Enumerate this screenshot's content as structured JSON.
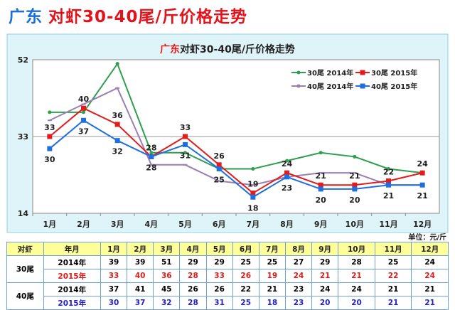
{
  "page_title": {
    "region": "广东",
    "rest": "对虾30-40尾/斤价格走势"
  },
  "colors": {
    "30尾 2014年": "#2e9e4f",
    "30尾 2015年": "#e31b1b",
    "40尾 2014年": "#9b7fb3",
    "40尾 2015年": "#1f6fe0",
    "background": "#dff4f8"
  },
  "unit": "单位：元/斤",
  "chart_data": {
    "type": "line",
    "title": {
      "region": "广东",
      "rest": "对虾30-40尾/斤价格走势"
    },
    "categories": [
      "1月",
      "2月",
      "3月",
      "4月",
      "5月",
      "6月",
      "7月",
      "8月",
      "9月",
      "10月",
      "11月",
      "12月"
    ],
    "ylim": [
      14,
      52
    ],
    "yticks": [
      14,
      33,
      52
    ],
    "grid": "horizontal at 33",
    "legend": "top-right",
    "series": [
      {
        "name": "30尾 2014年",
        "values": [
          39,
          39,
          51,
          29,
          29,
          25,
          25,
          27,
          29,
          28,
          25,
          24
        ],
        "labels": false
      },
      {
        "name": "30尾 2015年",
        "values": [
          33,
          40,
          36,
          28,
          33,
          26,
          19,
          24,
          21,
          21,
          22,
          24
        ],
        "labels": "above"
      },
      {
        "name": "40尾 2014年",
        "values": [
          37,
          41,
          45,
          26,
          26,
          22,
          21,
          23,
          24,
          24,
          21,
          21
        ],
        "labels": false
      },
      {
        "name": "40尾 2015年",
        "values": [
          30,
          37,
          32,
          28,
          31,
          25,
          18,
          23,
          20,
          20,
          21,
          21
        ],
        "labels": "below"
      }
    ]
  },
  "table": {
    "header": [
      "对虾",
      "年月",
      "1月",
      "2月",
      "3月",
      "4月",
      "5月",
      "6月",
      "7月",
      "8月",
      "9月",
      "10月",
      "11月",
      "12月"
    ],
    "groups": [
      {
        "label": "30尾",
        "rows": [
          {
            "year": "2014年",
            "values": [
              "39",
              "39",
              "51",
              "29",
              "29",
              "25",
              "25",
              "27",
              "29",
              "28",
              "25",
              "24"
            ]
          },
          {
            "year": "2015年",
            "values": [
              "33",
              "40",
              "36",
              "28",
              "33",
              "26",
              "19",
              "24",
              "21",
              "21",
              "22",
              "24"
            ]
          }
        ]
      },
      {
        "label": "40尾",
        "rows": [
          {
            "year": "2014年",
            "values": [
              "37",
              "41",
              "45",
              "26",
              "26",
              "22",
              "21",
              "23",
              "24",
              "24",
              "21",
              "21"
            ]
          },
          {
            "year": "2015年",
            "values": [
              "30",
              "37",
              "32",
              "28",
              "31",
              "25",
              "18",
              "23",
              "20",
              "20",
              "21",
              "21"
            ]
          }
        ]
      }
    ]
  }
}
